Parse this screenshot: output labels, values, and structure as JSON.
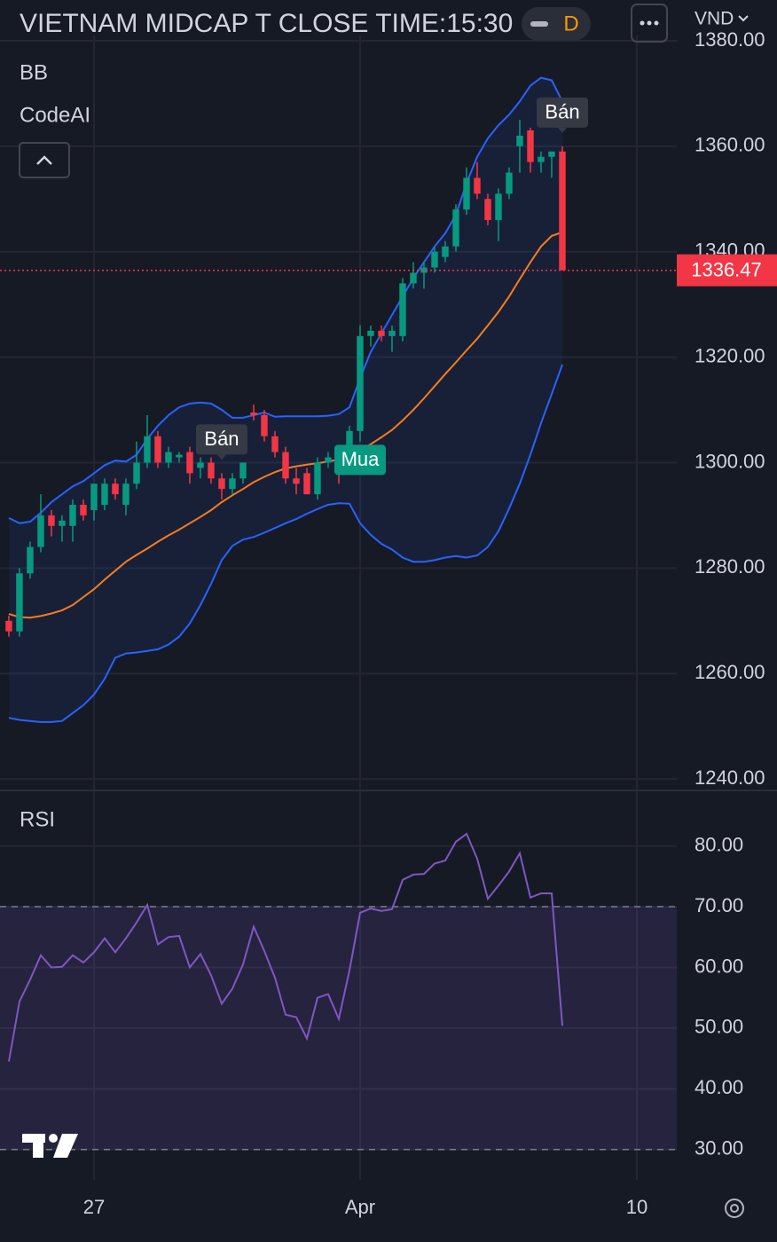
{
  "header": {
    "title": "VIETNAM MIDCAP T CLOSE TIME:15:30",
    "interval": "D",
    "currency": "VND"
  },
  "chart_data": [
    {
      "type": "candlestick",
      "indicators": [
        "BB",
        "CodeAI"
      ],
      "up_color": "#089981",
      "down_color": "#f23645",
      "open": [
        1270,
        1268,
        1279,
        1284,
        1290,
        1288,
        1288,
        1292,
        1291,
        1292,
        1296,
        1292,
        1296,
        1300,
        1305,
        1300,
        1301,
        1302,
        1299,
        1300,
        1297,
        1295,
        1297,
        1309.5,
        1309,
        1305,
        1302,
        1297,
        1298,
        1294,
        1300,
        1301,
        1300,
        1306,
        1324,
        1325,
        1324,
        1324,
        1334,
        1336,
        1337,
        1339,
        1341,
        1348,
        1354,
        1350,
        1346,
        1351,
        1360,
        1363,
        1357,
        1358,
        1359
      ],
      "high": [
        1271,
        1280,
        1285,
        1294,
        1291,
        1290,
        1293,
        1293,
        1296,
        1297,
        1297,
        1297,
        1304,
        1309,
        1306,
        1303,
        1302,
        1303,
        1301,
        1301,
        1298,
        1298,
        1300,
        1311,
        1310,
        1306,
        1303,
        1299,
        1299,
        1301,
        1302,
        1302,
        1307,
        1326,
        1326,
        1326,
        1326,
        1335,
        1338,
        1338,
        1341,
        1342,
        1349,
        1356,
        1357,
        1351,
        1352,
        1356,
        1365,
        1363.5,
        1359,
        1359,
        1360
      ],
      "low": [
        1267,
        1267,
        1278,
        1283,
        1286,
        1285,
        1285,
        1289,
        1289,
        1291,
        1293,
        1290,
        1295,
        1299,
        1299,
        1299,
        1300,
        1296,
        1297,
        1296,
        1293,
        1294,
        1296,
        1308,
        1304,
        1301,
        1296,
        1294,
        1294,
        1293,
        1299,
        1296,
        1299,
        1304,
        1322,
        1323,
        1321,
        1323,
        1333,
        1333,
        1336,
        1338,
        1340,
        1347,
        1350,
        1345,
        1342,
        1350,
        1355,
        1355,
        1355,
        1354,
        1336.47
      ],
      "close": [
        1268,
        1279,
        1284,
        1290,
        1288,
        1289,
        1292,
        1290,
        1296,
        1296,
        1294,
        1296,
        1300,
        1305,
        1300,
        1302,
        1301.5,
        1298,
        1300,
        1297,
        1295,
        1297,
        1300,
        1309,
        1305,
        1302,
        1297,
        1296,
        1294,
        1300,
        1301,
        1298,
        1306,
        1324,
        1325,
        1324,
        1325,
        1334,
        1336,
        1337,
        1340,
        1341,
        1348,
        1354,
        1351,
        1346,
        1351,
        1355,
        1362,
        1357,
        1358,
        1359,
        1336.47
      ],
      "series": [
        {
          "color": "#2962ff",
          "values": [
            1289.5,
            1288.5,
            1288.8,
            1290.5,
            1292.5,
            1294,
            1295.5,
            1296.5,
            1298,
            1299.5,
            1300.4,
            1300.2,
            1301.5,
            1304.5,
            1307,
            1309,
            1310.5,
            1311.2,
            1311.4,
            1311.2,
            1310,
            1308.5,
            1308.5,
            1309,
            1309.5,
            1308.7,
            1308.8,
            1308.8,
            1308.8,
            1308.8,
            1308.9,
            1309.2,
            1310.5,
            1316,
            1321,
            1324.5,
            1328,
            1331.5,
            1335,
            1338,
            1341,
            1343.5,
            1347,
            1353,
            1358,
            1361.5,
            1364,
            1366,
            1368.5,
            1371.5,
            1373,
            1372.5,
            1368.5
          ]
        },
        {
          "color": "#f57c20",
          "values": [
            1271.3,
            1270.7,
            1270.6,
            1270.9,
            1271.4,
            1272,
            1273,
            1274.5,
            1276,
            1277.8,
            1279.5,
            1281.2,
            1282.5,
            1283.7,
            1285,
            1286.2,
            1287.3,
            1288.5,
            1289.7,
            1291,
            1292.5,
            1293.8,
            1295,
            1296.3,
            1297.3,
            1298.2,
            1298.9,
            1299.3,
            1299.6,
            1299.9,
            1300.2,
            1300.6,
            1301.2,
            1302.3,
            1303.5,
            1304.8,
            1306.2,
            1308,
            1310,
            1312.2,
            1314.5,
            1316.8,
            1319,
            1321.3,
            1323.5,
            1326,
            1328.6,
            1331.5,
            1334.8,
            1338,
            1341,
            1343,
            1343.7
          ]
        },
        {
          "color": "#2962ff",
          "values": [
            1251.6,
            1251.2,
            1251,
            1250.8,
            1250.8,
            1251,
            1252.5,
            1254,
            1256,
            1259,
            1263,
            1263.8,
            1264,
            1264.3,
            1264.6,
            1265.5,
            1267,
            1269.5,
            1273,
            1277,
            1281.5,
            1284.2,
            1285.4,
            1285.9,
            1286.7,
            1287.6,
            1288.5,
            1289.3,
            1290.3,
            1291.2,
            1292,
            1292.3,
            1292.2,
            1288.5,
            1286.3,
            1284.6,
            1283.5,
            1282,
            1281.2,
            1281.2,
            1281.5,
            1282,
            1282.3,
            1282,
            1282.4,
            1284,
            1287,
            1291.3,
            1296,
            1301.5,
            1307.5,
            1313,
            1318.6
          ]
        }
      ],
      "signals": [
        {
          "index": 20,
          "label": "Bán",
          "color": "#363a45"
        },
        {
          "index": 32,
          "label": "Mua",
          "color": "#089981"
        },
        {
          "index": 52,
          "label": "Bán",
          "color": "#363a45"
        }
      ],
      "ylim": [
        1238,
        1381
      ],
      "yticks": [
        {
          "value": 1240,
          "label": "1240.00"
        },
        {
          "value": 1260,
          "label": "1260.00"
        },
        {
          "value": 1280,
          "label": "1280.00"
        },
        {
          "value": 1300,
          "label": "1300.00"
        },
        {
          "value": 1320,
          "label": "1320.00"
        },
        {
          "value": 1340,
          "label": "1340.00"
        },
        {
          "value": 1360,
          "label": "1360.00"
        },
        {
          "value": 1380,
          "label": "1380.00"
        }
      ],
      "xlim": [
        -0.83,
        62.75
      ],
      "xticks": [
        {
          "value": 8,
          "label": "27"
        },
        {
          "value": 33,
          "label": "Apr"
        },
        {
          "value": 59,
          "label": "10"
        }
      ],
      "grid": true
    },
    {
      "type": "line",
      "title": "RSI",
      "series": [
        {
          "color": "#7e57c2",
          "values": [
            44.5,
            54.4,
            58,
            62,
            60,
            60.1,
            62,
            60.8,
            62.5,
            64.8,
            62.5,
            64.8,
            67.4,
            70.3,
            63.8,
            65,
            65.2,
            60,
            62.2,
            58.7,
            54,
            56.5,
            60.5,
            66.7,
            62.7,
            58.3,
            52.2,
            51.8,
            48.3,
            55,
            55.6,
            51.5,
            59.5,
            69,
            69.7,
            69.3,
            69.6,
            74.4,
            75.3,
            75.4,
            77.1,
            77.6,
            80.7,
            82,
            77.9,
            71.3,
            73.5,
            75.8,
            78.8,
            71.5,
            72.2,
            72.2,
            50.4
          ]
        }
      ],
      "band": [
        30,
        70
      ],
      "ylim": [
        25,
        89
      ],
      "yticks": [
        {
          "value": 30,
          "label": "30.00"
        },
        {
          "value": 40,
          "label": "40.00"
        },
        {
          "value": 50,
          "label": "50.00"
        },
        {
          "value": 60,
          "label": "60.00"
        },
        {
          "value": 70,
          "label": "70.00"
        },
        {
          "value": 80,
          "label": "80.00"
        }
      ],
      "grid": true
    }
  ]
}
